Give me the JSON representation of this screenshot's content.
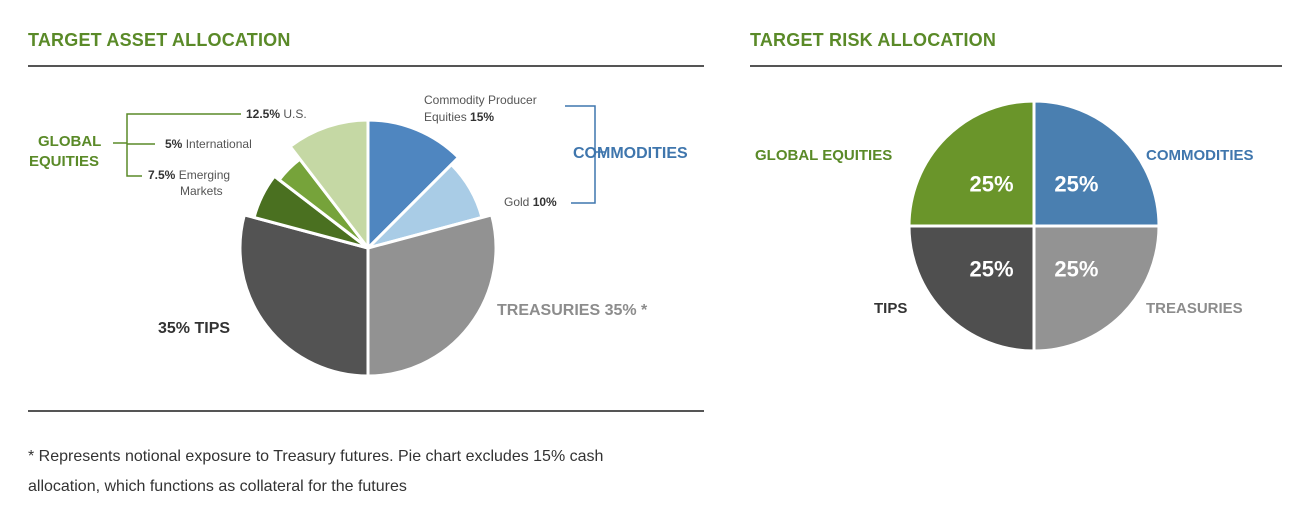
{
  "left": {
    "title": "TARGET ASSET ALLOCATION",
    "labels": {
      "us_pct": "12.5%",
      "us_name": "U.S.",
      "intl_pct": "5%",
      "intl_name": "International",
      "em_pct": "7.5%",
      "em_name1": "Emerging",
      "em_name2": "Markets",
      "global_equities_1": "GLOBAL",
      "global_equities_2": "EQUITIES",
      "cpe_name1": "Commodity Producer",
      "cpe_name2": "Equities",
      "cpe_pct": "15%",
      "gold_name": "Gold",
      "gold_pct": "10%",
      "commodities": "COMMODITIES",
      "treasuries": "TREASURIES 35% *",
      "tips": "35% TIPS"
    }
  },
  "right": {
    "title": "TARGET RISK ALLOCATION",
    "labels": {
      "global_equities": "GLOBAL EQUITIES",
      "commodities": "COMMODITIES",
      "tips": "TIPS",
      "treasuries": "TREASURIES"
    }
  },
  "footnote": {
    "line1": "* Represents notional exposure to Treasury futures. Pie chart excludes 15% cash",
    "line2": "allocation, which functions as collateral for the futures"
  },
  "chart_data": [
    {
      "type": "pie",
      "title": "TARGET ASSET ALLOCATION",
      "slices": [
        {
          "label": "Commodity Producer Equities",
          "value": 15,
          "color": "#4f86c0"
        },
        {
          "label": "Gold",
          "value": 10,
          "color": "#a9cce6"
        },
        {
          "label": "Treasuries",
          "value": 35,
          "color": "#929292"
        },
        {
          "label": "TIPS",
          "value": 35,
          "color": "#535353"
        },
        {
          "label": "Emerging Markets",
          "value": 7.5,
          "color": "#4a7020"
        },
        {
          "label": "International",
          "value": 5,
          "color": "#76a33a"
        },
        {
          "label": "U.S.",
          "value": 12.5,
          "color": "#c5d8a4"
        }
      ]
    },
    {
      "type": "pie",
      "title": "TARGET RISK ALLOCATION",
      "slices": [
        {
          "label": "Commodities",
          "value": 25,
          "display": "25%",
          "color": "#4a7fb0"
        },
        {
          "label": "Treasuries",
          "value": 25,
          "display": "25%",
          "color": "#939393"
        },
        {
          "label": "TIPS",
          "value": 25,
          "display": "25%",
          "color": "#4f4f4f"
        },
        {
          "label": "Global Equities",
          "value": 25,
          "display": "25%",
          "color": "#6a952a"
        }
      ]
    }
  ]
}
